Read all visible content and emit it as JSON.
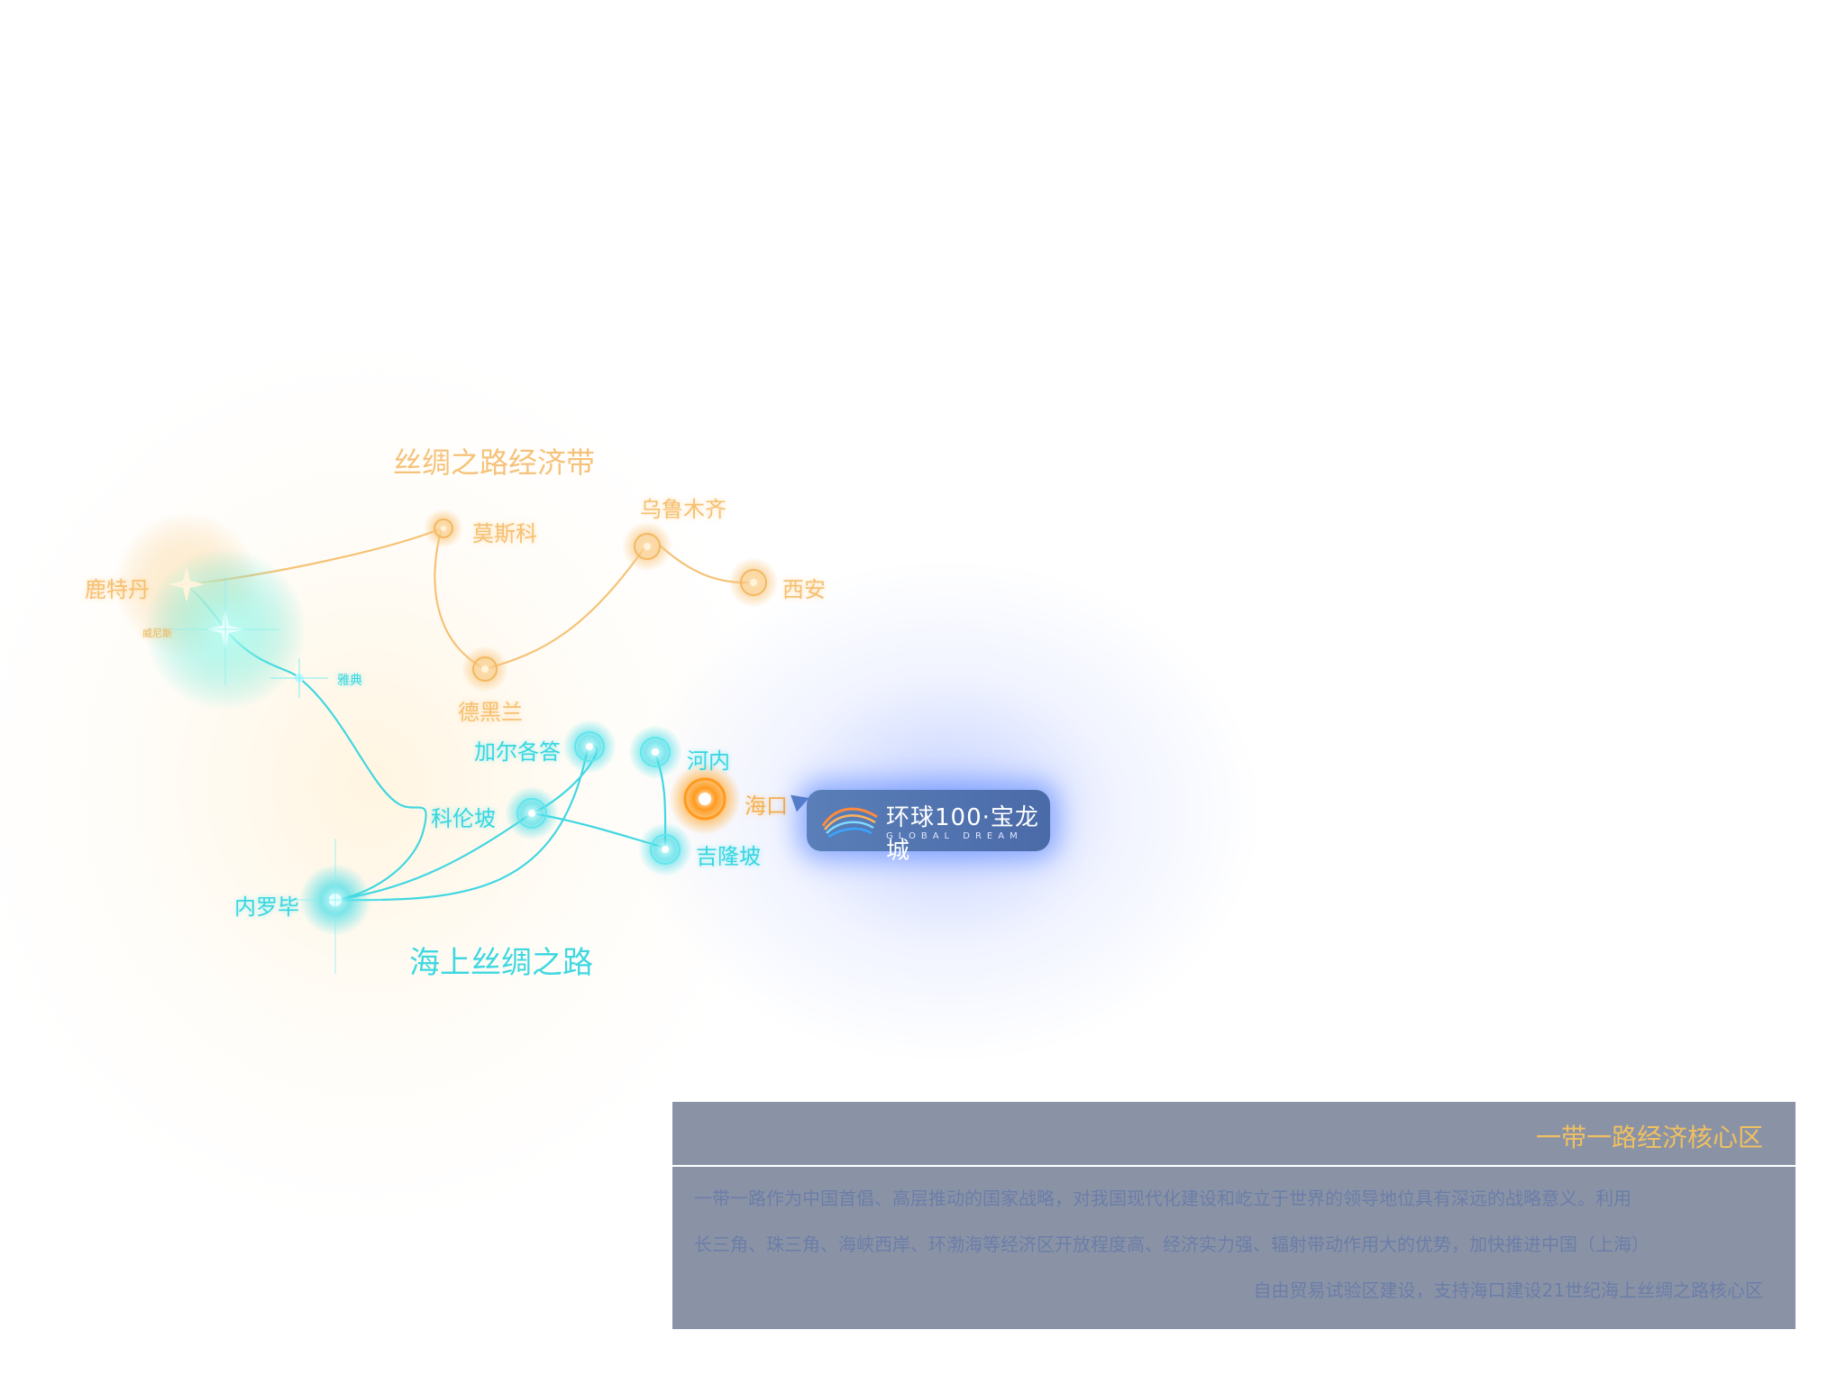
{
  "map": {
    "title_land": "丝绸之路经济带",
    "title_sea": "海上丝绸之路",
    "cities_land": {
      "rotterdam": "鹿特丹",
      "moscow": "莫斯科",
      "urumqi": "乌鲁木齐",
      "xian": "西安",
      "tehran": "德黑兰"
    },
    "cities_sea": {
      "venice": "威尼斯",
      "athens": "雅典",
      "kolkata": "加尔各答",
      "hanoi": "河内",
      "colombo": "科伦坡",
      "kualalumpur": "吉隆坡",
      "nairobi": "内罗毕"
    },
    "haikou": "海口",
    "colors": {
      "land": "#f5c071",
      "sea": "#38d6e0",
      "haikou": "#ff9a1e",
      "badge": "#5a7fb8"
    }
  },
  "badge": {
    "name": "环球100·宝龙城",
    "subtitle": "GLOBAL DREAM",
    "icon": "wave-logo-icon"
  },
  "panel": {
    "title": "一带一路经济核心区",
    "para1": "一带一路作为中国首倡、高层推动的国家战略，对我国现代化建设和屹立于世界的领导地位具有深远的战略意义。利用",
    "para2": "长三角、珠三角、海峡西岸、环渤海等经济区开放程度高、经济实力强、辐射带动作用大的优势，加快推进中国（上海）",
    "para3": "自由贸易试验区建设，支持海口建设21世纪海上丝绸之路核心区"
  }
}
